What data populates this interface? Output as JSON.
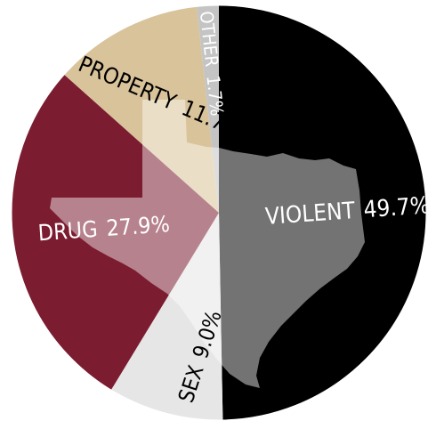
{
  "chart_data": {
    "type": "pie",
    "slices": [
      {
        "label": "VIOLENT",
        "value": 49.7,
        "value_label": "49.7%",
        "color": "#000000",
        "text_color": "#ffffff"
      },
      {
        "label": "SEX",
        "value": 9.0,
        "value_label": "9.0%",
        "color": "#e6e6e6",
        "text_color": "#000000"
      },
      {
        "label": "DRUG",
        "value": 27.9,
        "value_label": "27.9%",
        "color": "#7b1c30",
        "text_color": "#ffffff"
      },
      {
        "label": "PROPERTY",
        "value": 11.7,
        "value_label": "11.7%",
        "color": "#d9c39a",
        "text_color": "#000000"
      },
      {
        "label": "OTHER",
        "value": 1.7,
        "value_label": "1.7%",
        "color": "#c4c4c4",
        "text_color": "#ffffff"
      }
    ],
    "start_angle_deg": 0,
    "direction": "clockwise",
    "background_map": "texas-silhouette",
    "map_color": "#8f8f8f"
  }
}
